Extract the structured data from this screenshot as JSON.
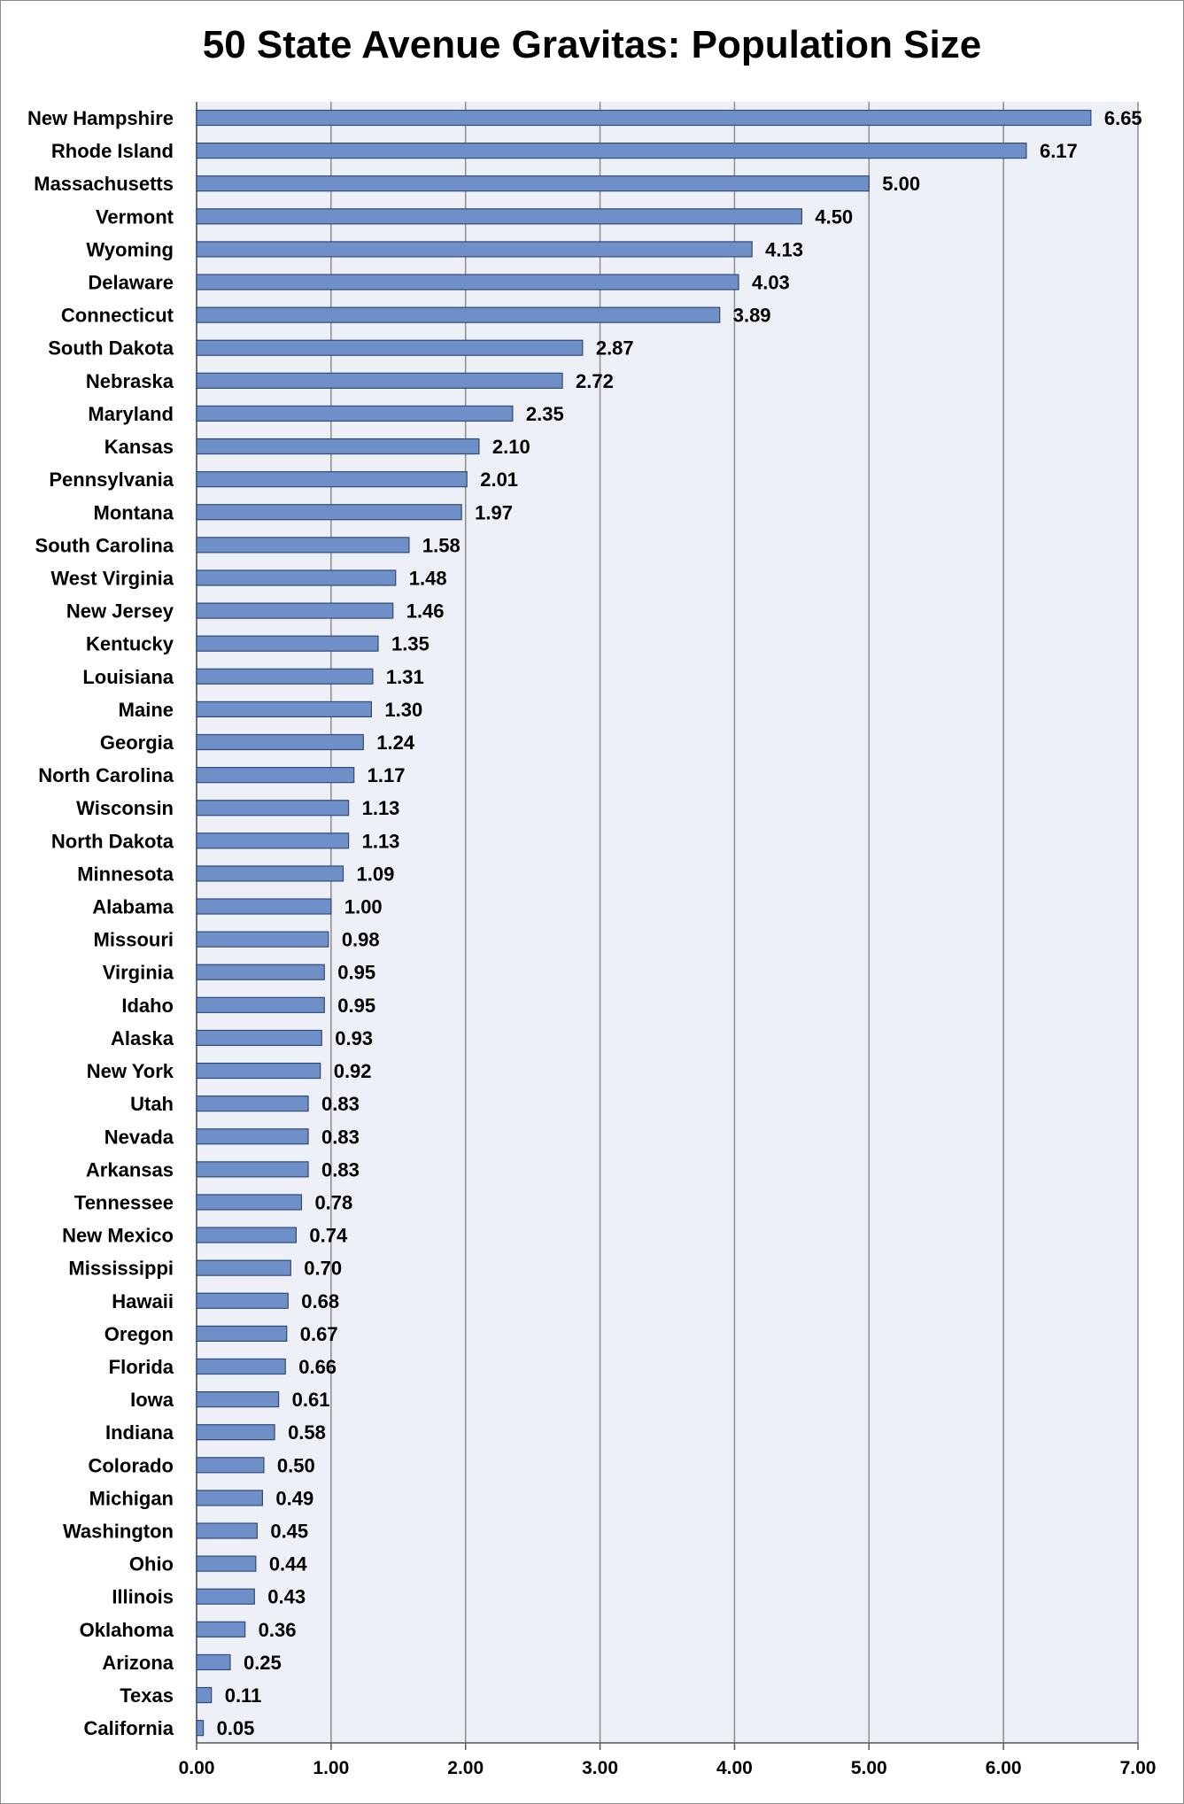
{
  "chart_data": {
    "type": "bar",
    "orientation": "horizontal",
    "title": "50 State Avenue Gravitas: Population Size",
    "xlabel": "",
    "ylabel": "",
    "xlim": [
      0,
      7
    ],
    "xticks": [
      "0.00",
      "1.00",
      "2.00",
      "3.00",
      "4.00",
      "5.00",
      "6.00",
      "7.00"
    ],
    "grid": "vertical",
    "legend": "none",
    "colors": {
      "bar_fill": "#6f8fc9",
      "bar_stroke": "#2f4a7c",
      "plot_bg": "#eef0f7",
      "grid": "#8c8c8c"
    },
    "categories": [
      "New Hampshire",
      "Rhode Island",
      "Massachusetts",
      "Vermont",
      "Wyoming",
      "Delaware",
      "Connecticut",
      "South Dakota",
      "Nebraska",
      "Maryland",
      "Kansas",
      "Pennsylvania",
      "Montana",
      "South Carolina",
      "West Virginia",
      "New Jersey",
      "Kentucky",
      "Louisiana",
      "Maine",
      "Georgia",
      "North Carolina",
      "Wisconsin",
      "North Dakota",
      "Minnesota",
      "Alabama",
      "Missouri",
      "Virginia",
      "Idaho",
      "Alaska",
      "New York",
      "Utah",
      "Nevada",
      "Arkansas",
      "Tennessee",
      "New Mexico",
      "Mississippi",
      "Hawaii",
      "Oregon",
      "Florida",
      "Iowa",
      "Indiana",
      "Colorado",
      "Michigan",
      "Washington",
      "Ohio",
      "Illinois",
      "Oklahoma",
      "Arizona",
      "Texas",
      "California"
    ],
    "values": [
      6.65,
      6.17,
      5.0,
      4.5,
      4.13,
      4.03,
      3.89,
      2.87,
      2.72,
      2.35,
      2.1,
      2.01,
      1.97,
      1.58,
      1.48,
      1.46,
      1.35,
      1.31,
      1.3,
      1.24,
      1.17,
      1.13,
      1.13,
      1.09,
      1.0,
      0.98,
      0.95,
      0.95,
      0.93,
      0.92,
      0.83,
      0.83,
      0.83,
      0.78,
      0.74,
      0.7,
      0.68,
      0.67,
      0.66,
      0.61,
      0.58,
      0.5,
      0.49,
      0.45,
      0.44,
      0.43,
      0.36,
      0.25,
      0.11,
      0.05
    ],
    "value_labels": [
      "6.65",
      "6.17",
      "5.00",
      "4.50",
      "4.13",
      "4.03",
      "3.89",
      "2.87",
      "2.72",
      "2.35",
      "2.10",
      "2.01",
      "1.97",
      "1.58",
      "1.48",
      "1.46",
      "1.35",
      "1.31",
      "1.30",
      "1.24",
      "1.17",
      "1.13",
      "1.13",
      "1.09",
      "1.00",
      "0.98",
      "0.95",
      "0.95",
      "0.93",
      "0.92",
      "0.83",
      "0.83",
      "0.83",
      "0.78",
      "0.74",
      "0.70",
      "0.68",
      "0.67",
      "0.66",
      "0.61",
      "0.58",
      "0.50",
      "0.49",
      "0.45",
      "0.44",
      "0.43",
      "0.36",
      "0.25",
      "0.11",
      "0.05"
    ]
  }
}
